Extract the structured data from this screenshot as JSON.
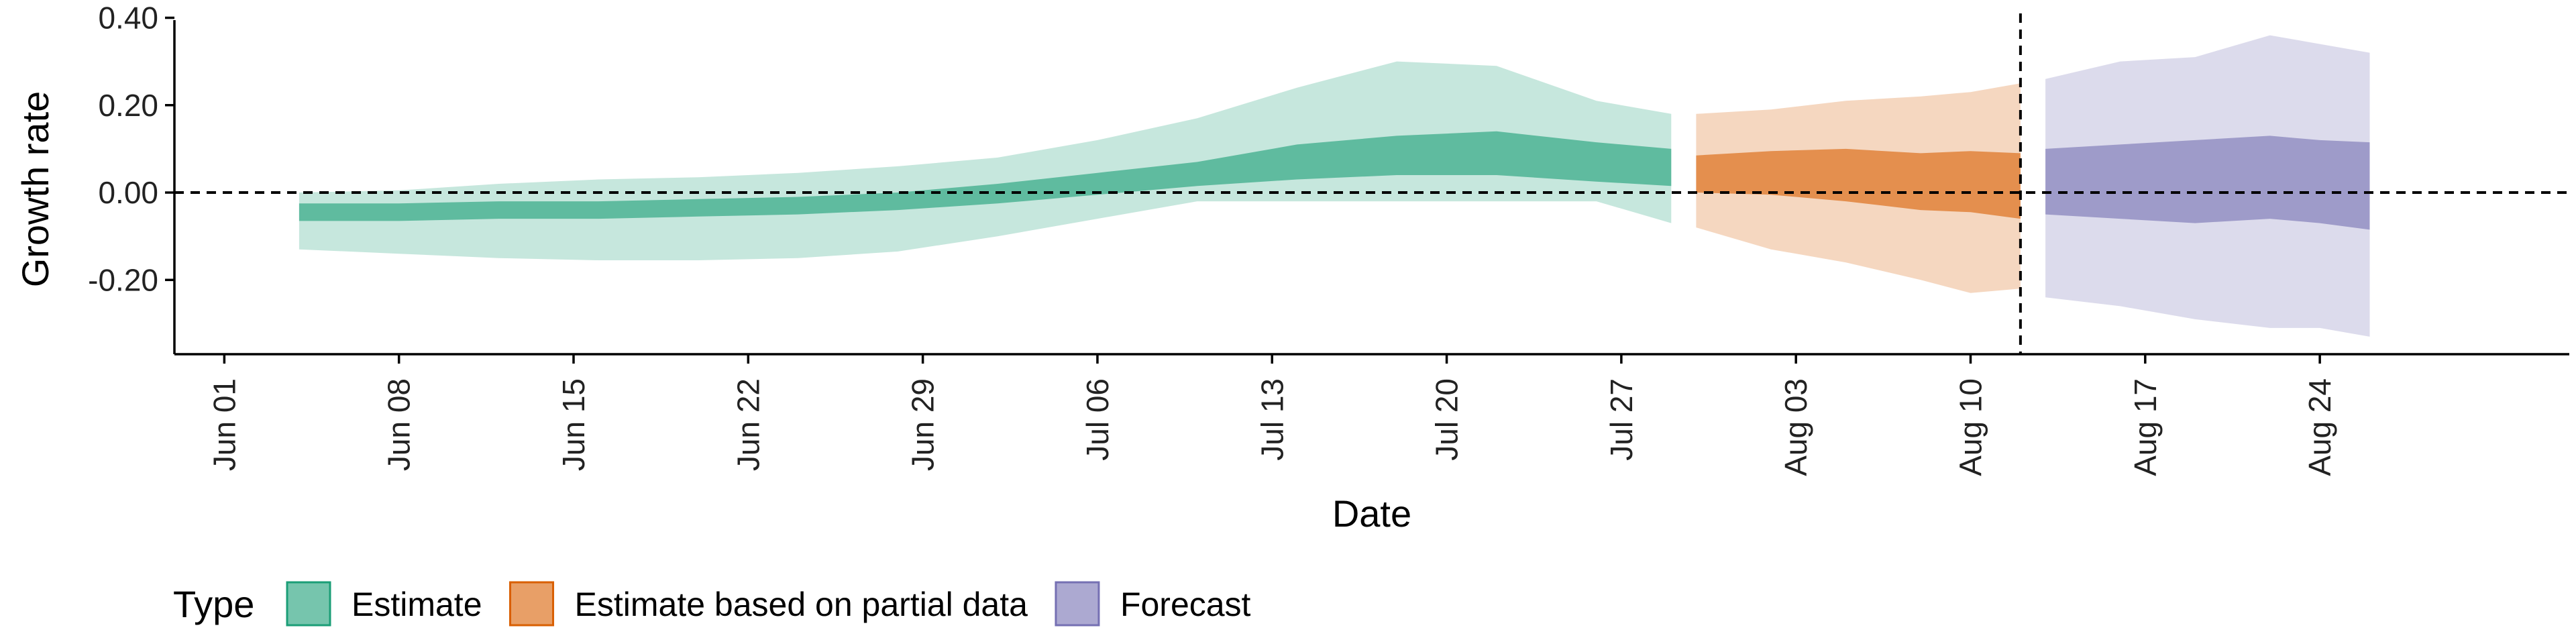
{
  "chart_data": {
    "type": "area",
    "xlabel": "Date",
    "ylabel": "Growth rate",
    "x_tick_labels": [
      "Jun 01",
      "Jun 08",
      "Jun 15",
      "Jun 22",
      "Jun 29",
      "Jul 06",
      "Jul 13",
      "Jul 20",
      "Jul 27",
      "Aug 03",
      "Aug 10",
      "Aug 17",
      "Aug 24"
    ],
    "x_ticks": [
      "2020-06-01",
      "2020-06-08",
      "2020-06-15",
      "2020-06-22",
      "2020-06-29",
      "2020-07-06",
      "2020-07-13",
      "2020-07-20",
      "2020-07-27",
      "2020-08-03",
      "2020-08-10",
      "2020-08-17",
      "2020-08-24"
    ],
    "x_range": [
      "2020-05-30",
      "2020-09-03"
    ],
    "y_tick_labels": [
      "-0.20",
      "0.00",
      "0.20",
      "0.40"
    ],
    "y_ticks": [
      -0.2,
      0.0,
      0.2,
      0.4
    ],
    "ylim": [
      -0.37,
      0.41
    ],
    "reference_lines": {
      "horizontal_y": 0.0,
      "vertical_date": "2020-08-12"
    },
    "legend": {
      "title": "Type",
      "position": "bottom"
    },
    "series": [
      {
        "name": "Estimate",
        "color": "#1b9e77",
        "points": [
          {
            "date": "2020-06-04",
            "lower90": -0.13,
            "lower50": -0.065,
            "upper50": -0.025,
            "upper90": 0.0
          },
          {
            "date": "2020-06-08",
            "lower90": -0.14,
            "lower50": -0.065,
            "upper50": -0.025,
            "upper90": 0.005
          },
          {
            "date": "2020-06-12",
            "lower90": -0.15,
            "lower50": -0.06,
            "upper50": -0.02,
            "upper90": 0.02
          },
          {
            "date": "2020-06-16",
            "lower90": -0.155,
            "lower50": -0.06,
            "upper50": -0.02,
            "upper90": 0.03
          },
          {
            "date": "2020-06-20",
            "lower90": -0.155,
            "lower50": -0.055,
            "upper50": -0.015,
            "upper90": 0.035
          },
          {
            "date": "2020-06-24",
            "lower90": -0.15,
            "lower50": -0.05,
            "upper50": -0.01,
            "upper90": 0.045
          },
          {
            "date": "2020-06-28",
            "lower90": -0.135,
            "lower50": -0.04,
            "upper50": 0.0,
            "upper90": 0.06
          },
          {
            "date": "2020-07-02",
            "lower90": -0.1,
            "lower50": -0.025,
            "upper50": 0.02,
            "upper90": 0.08
          },
          {
            "date": "2020-07-06",
            "lower90": -0.06,
            "lower50": -0.005,
            "upper50": 0.045,
            "upper90": 0.12
          },
          {
            "date": "2020-07-10",
            "lower90": -0.02,
            "lower50": 0.015,
            "upper50": 0.07,
            "upper90": 0.17
          },
          {
            "date": "2020-07-14",
            "lower90": -0.02,
            "lower50": 0.03,
            "upper50": 0.11,
            "upper90": 0.24
          },
          {
            "date": "2020-07-18",
            "lower90": -0.02,
            "lower50": 0.04,
            "upper50": 0.13,
            "upper90": 0.3
          },
          {
            "date": "2020-07-22",
            "lower90": -0.02,
            "lower50": 0.04,
            "upper50": 0.14,
            "upper90": 0.29
          },
          {
            "date": "2020-07-26",
            "lower90": -0.02,
            "lower50": 0.025,
            "upper50": 0.115,
            "upper90": 0.21
          },
          {
            "date": "2020-07-29",
            "lower90": -0.07,
            "lower50": 0.015,
            "upper50": 0.1,
            "upper90": 0.18
          }
        ]
      },
      {
        "name": "Estimate based on partial data",
        "color": "#d95f02",
        "points": [
          {
            "date": "2020-07-30",
            "lower90": -0.08,
            "lower50": 0.0,
            "upper50": 0.085,
            "upper90": 0.18
          },
          {
            "date": "2020-08-02",
            "lower90": -0.13,
            "lower50": -0.005,
            "upper50": 0.095,
            "upper90": 0.19
          },
          {
            "date": "2020-08-05",
            "lower90": -0.16,
            "lower50": -0.02,
            "upper50": 0.1,
            "upper90": 0.21
          },
          {
            "date": "2020-08-08",
            "lower90": -0.2,
            "lower50": -0.04,
            "upper50": 0.09,
            "upper90": 0.22
          },
          {
            "date": "2020-08-10",
            "lower90": -0.23,
            "lower50": -0.045,
            "upper50": 0.095,
            "upper90": 0.23
          },
          {
            "date": "2020-08-12",
            "lower90": -0.22,
            "lower50": -0.06,
            "upper50": 0.09,
            "upper90": 0.25
          }
        ]
      },
      {
        "name": "Forecast",
        "color": "#7570b3",
        "points": [
          {
            "date": "2020-08-13",
            "lower90": -0.24,
            "lower50": -0.05,
            "upper50": 0.1,
            "upper90": 0.26
          },
          {
            "date": "2020-08-16",
            "lower90": -0.26,
            "lower50": -0.06,
            "upper50": 0.11,
            "upper90": 0.3
          },
          {
            "date": "2020-08-19",
            "lower90": -0.29,
            "lower50": -0.07,
            "upper50": 0.12,
            "upper90": 0.31
          },
          {
            "date": "2020-08-22",
            "lower90": -0.31,
            "lower50": -0.06,
            "upper50": 0.13,
            "upper90": 0.36
          },
          {
            "date": "2020-08-24",
            "lower90": -0.31,
            "lower50": -0.07,
            "upper50": 0.12,
            "upper90": 0.34
          },
          {
            "date": "2020-08-26",
            "lower90": -0.33,
            "lower50": -0.085,
            "upper50": 0.115,
            "upper90": 0.32
          }
        ]
      }
    ]
  }
}
